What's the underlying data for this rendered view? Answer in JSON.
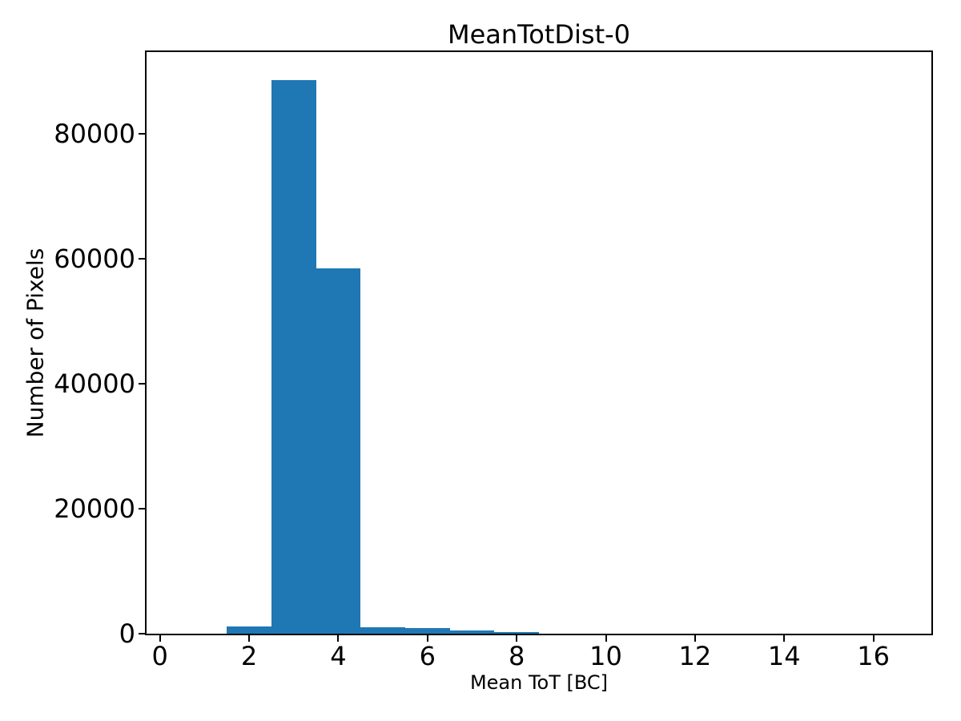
{
  "chart_data": {
    "type": "bar",
    "subtype": "histogram",
    "title": "MeanTotDist-0",
    "xlabel": "Mean ToT [BC]",
    "ylabel": "Number of Pixels",
    "bar_color": "#1f77b4",
    "axis_color": "#000000",
    "background_color": "#ffffff",
    "grid": false,
    "legend": null,
    "xlim": [
      -0.3,
      17.3
    ],
    "ylim": [
      0,
      93030
    ],
    "x_ticks": [
      0,
      2,
      4,
      6,
      8,
      10,
      12,
      14,
      16
    ],
    "y_ticks": [
      0,
      20000,
      40000,
      60000,
      80000
    ],
    "bin_start": 0.5,
    "bin_width": 1,
    "bin_edges": [
      0.5,
      1.5,
      2.5,
      3.5,
      4.5,
      5.5,
      6.5,
      7.5,
      8.5,
      9.5,
      10.5,
      11.5,
      12.5,
      13.5,
      14.5,
      15.5,
      16.5
    ],
    "counts": [
      0,
      1100,
      88600,
      58400,
      1000,
      850,
      450,
      250,
      0,
      0,
      0,
      0,
      0,
      0,
      0,
      0
    ]
  }
}
